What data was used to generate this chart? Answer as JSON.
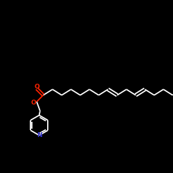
{
  "background_color": "#000000",
  "bond_color": "#ffffff",
  "o_color": "#ff2200",
  "n_color": "#3333cc",
  "line_width": 1.3,
  "figsize": [
    2.5,
    2.5
  ],
  "dpi": 100,
  "xlim": [
    0,
    1
  ],
  "ylim": [
    0,
    1
  ]
}
